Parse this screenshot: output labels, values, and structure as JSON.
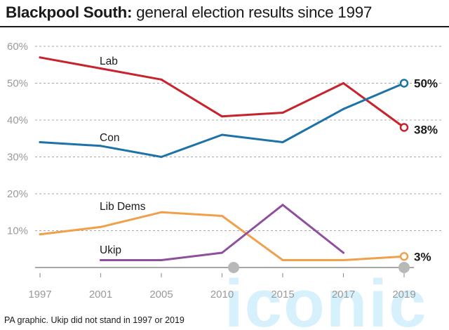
{
  "header": {
    "title_bold": "Blackpool South:",
    "title_rest": " general election results since 1997"
  },
  "footnote": "PA graphic. Ukip did not stand in 1997 or 2019",
  "watermark": "iconic",
  "chart_data": {
    "type": "line",
    "title": "Blackpool South: general election results since 1997",
    "x": [
      "1997",
      "2001",
      "2005",
      "2010",
      "2015",
      "2017",
      "2019"
    ],
    "ylim": [
      0,
      60
    ],
    "yticks": [
      "10%",
      "20%",
      "30%",
      "40%",
      "50%",
      "60%"
    ],
    "ytick_values": [
      10,
      20,
      30,
      40,
      50,
      60
    ],
    "grid": true,
    "series": [
      {
        "name": "Lab",
        "color": "#c8232c",
        "values": [
          57,
          54,
          51,
          41,
          42,
          50,
          38
        ],
        "end_label": "38%"
      },
      {
        "name": "Con",
        "color": "#1d72a8",
        "values": [
          34,
          33,
          30,
          36,
          34,
          43,
          50
        ],
        "end_label": "50%"
      },
      {
        "name": "Lib Dems",
        "color": "#f0a04b",
        "values": [
          9,
          11,
          15,
          14,
          2,
          2,
          3
        ],
        "end_label": "3%"
      },
      {
        "name": "Ukip",
        "color": "#8e4f9e",
        "values": [
          null,
          2,
          2,
          4,
          17,
          4,
          null
        ],
        "end_label": ""
      }
    ]
  }
}
